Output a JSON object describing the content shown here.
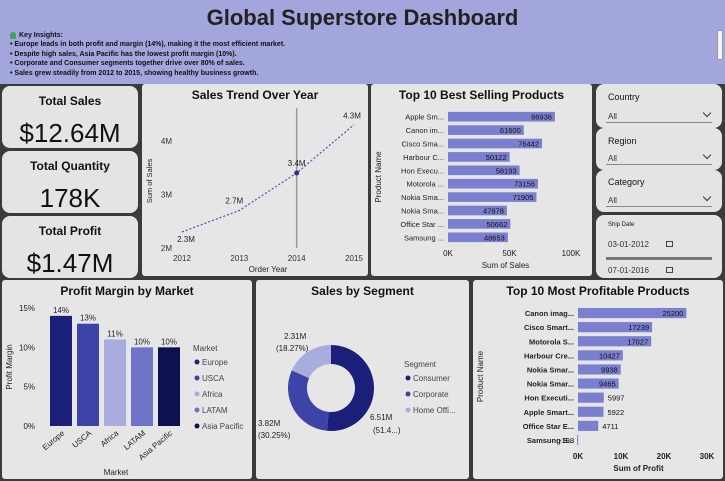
{
  "header": {
    "title": "Global Superstore Dashboard",
    "insights_title": "Key Insights:",
    "insights": [
      "• Europe leads in both profit and margin (14%), making it the most efficient market.",
      "• Despite high sales, Asia Pacific has the lowest profit margin (10%).",
      "• Corporate and Consumer segments together drive over 80% of sales.",
      "• Sales grew steadily from 2012 to 2015, showing healthy business growth."
    ]
  },
  "kpis": {
    "sales_label": "Total Sales",
    "sales_value": "$12.64M",
    "qty_label": "Total Quantity",
    "qty_value": "178K",
    "profit_label": "Total Profit",
    "profit_value": "$1.47M"
  },
  "slicers": {
    "country_label": "Country",
    "country_value": "All",
    "region_label": "Region",
    "region_value": "All",
    "category_label": "Category",
    "category_value": "All",
    "shipdate_label": "Ship Date",
    "date_start": "03-01-2012",
    "date_end": "07-01-2016"
  },
  "colors": {
    "navy": "#1b1f7a",
    "mid": "#3d44a8",
    "medium": "#6e73c7",
    "light": "#a9acdf",
    "bar": "#7b7fcf"
  },
  "chart_data": [
    {
      "id": "sales_trend",
      "type": "line",
      "title": "Sales Trend Over Year",
      "xlabel": "Order Year",
      "ylabel": "Sum of Sales",
      "x": [
        2012,
        2013,
        2014,
        2015
      ],
      "values": [
        2.3,
        2.7,
        3.4,
        4.3
      ],
      "data_labels": [
        "2.3M",
        "2.7M",
        "3.4M",
        "4.3M"
      ],
      "y_ticks": [
        "2M",
        "3M",
        "4M"
      ],
      "x_ticks": [
        "2012",
        "2013",
        "2014",
        "2015"
      ],
      "ylim": [
        2,
        4.5
      ]
    },
    {
      "id": "top_selling",
      "type": "bar",
      "title": "Top 10 Best Selling Products",
      "xlabel": "Sum of Sales",
      "ylabel": "Product Name",
      "categories": [
        "Apple Sm...",
        "Canon im...",
        "Cisco Sma...",
        "Harbour C...",
        "Hon Execu...",
        "Motorola ...",
        "Nokia Sma...",
        "Nokia Sma...",
        "Office Star ...",
        "Samsung ..."
      ],
      "values": [
        86936,
        61600,
        76442,
        50122,
        58193,
        73156,
        71905,
        47878,
        50662,
        48653
      ],
      "x_ticks": [
        "0K",
        "50K",
        "100K"
      ],
      "xlim": [
        0,
        100000
      ]
    },
    {
      "id": "profit_margin",
      "type": "bar",
      "title": "Profit Margin by Market",
      "xlabel": "Market",
      "ylabel": "Profit Margin",
      "categories": [
        "Europe",
        "USCA",
        "Africa",
        "LATAM",
        "Asia Pacific"
      ],
      "values": [
        14,
        13,
        11,
        10,
        10
      ],
      "data_labels": [
        "14%",
        "13%",
        "11%",
        "10%",
        "10%"
      ],
      "colors": [
        "#1b1f7a",
        "#3d44a8",
        "#a9acdf",
        "#6e73c7",
        "#0e1150"
      ],
      "y_ticks": [
        "0%",
        "5%",
        "10%",
        "15%"
      ],
      "ylim": [
        0,
        15
      ],
      "legend_title": "Market",
      "legend_position": "right"
    },
    {
      "id": "sales_segment",
      "type": "pie",
      "title": "Sales by Segment",
      "categories": [
        "Consumer",
        "Corporate",
        "Home Offi..."
      ],
      "values": [
        6.51,
        3.82,
        2.31
      ],
      "percent": [
        51.4,
        30.25,
        18.27
      ],
      "label_values": [
        "6.51M",
        "3.82M",
        "2.31M"
      ],
      "label_percents": [
        "(51.4...)",
        "(30.25%)",
        "(18.27%)"
      ],
      "colors": [
        "#1b1f7a",
        "#3d44a8",
        "#a9acdf"
      ],
      "legend_title": "Segment",
      "legend_position": "right"
    },
    {
      "id": "top_profitable",
      "type": "bar",
      "title": "Top 10 Most Profitable Products",
      "xlabel": "Sum of Profit",
      "ylabel": "Product Name",
      "categories": [
        "Canon imag...",
        "Cisco Smart...",
        "Motorola S...",
        "Harbour Cre...",
        "Nokia Smar...",
        "Nokia Smar...",
        "Hon Executi...",
        "Apple Smart...",
        "Office Star E...",
        "Samsung S..."
      ],
      "values": [
        25200,
        17239,
        17027,
        10427,
        9938,
        9465,
        5997,
        5922,
        4711,
        -198
      ],
      "x_ticks": [
        "0K",
        "10K",
        "20K",
        "30K"
      ],
      "xlim": [
        0,
        30000
      ]
    }
  ]
}
